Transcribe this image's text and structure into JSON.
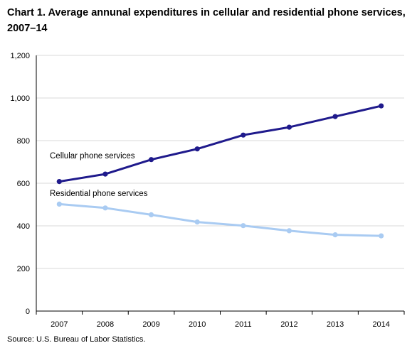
{
  "title": "Chart 1. Average annunal expenditures in cellular and residential phone services, 2007–14",
  "source": "Source: U.S. Bureau of Labor Statistics.",
  "chart_data": {
    "type": "line",
    "title": "Chart 1. Average annunal expenditures in cellular and residential phone services, 2007–14",
    "xlabel": "",
    "ylabel": "",
    "x": [
      "2007",
      "2008",
      "2009",
      "2010",
      "2011",
      "2012",
      "2013",
      "2014"
    ],
    "ylim": [
      0,
      1200
    ],
    "yticks": [
      0,
      200,
      400,
      600,
      800,
      1000,
      1200
    ],
    "ytick_labels": [
      "0",
      "200",
      "400",
      "600",
      "800",
      "1,000",
      "1,200"
    ],
    "grid": true,
    "series": [
      {
        "name": "Cellular phone services",
        "color": "#1f1a8c",
        "values": [
          608,
          643,
          711,
          761,
          826,
          863,
          913,
          963
        ]
      },
      {
        "name": "Residential phone services",
        "color": "#a9cbf2",
        "values": [
          502,
          484,
          452,
          418,
          401,
          377,
          358,
          353
        ]
      }
    ]
  }
}
